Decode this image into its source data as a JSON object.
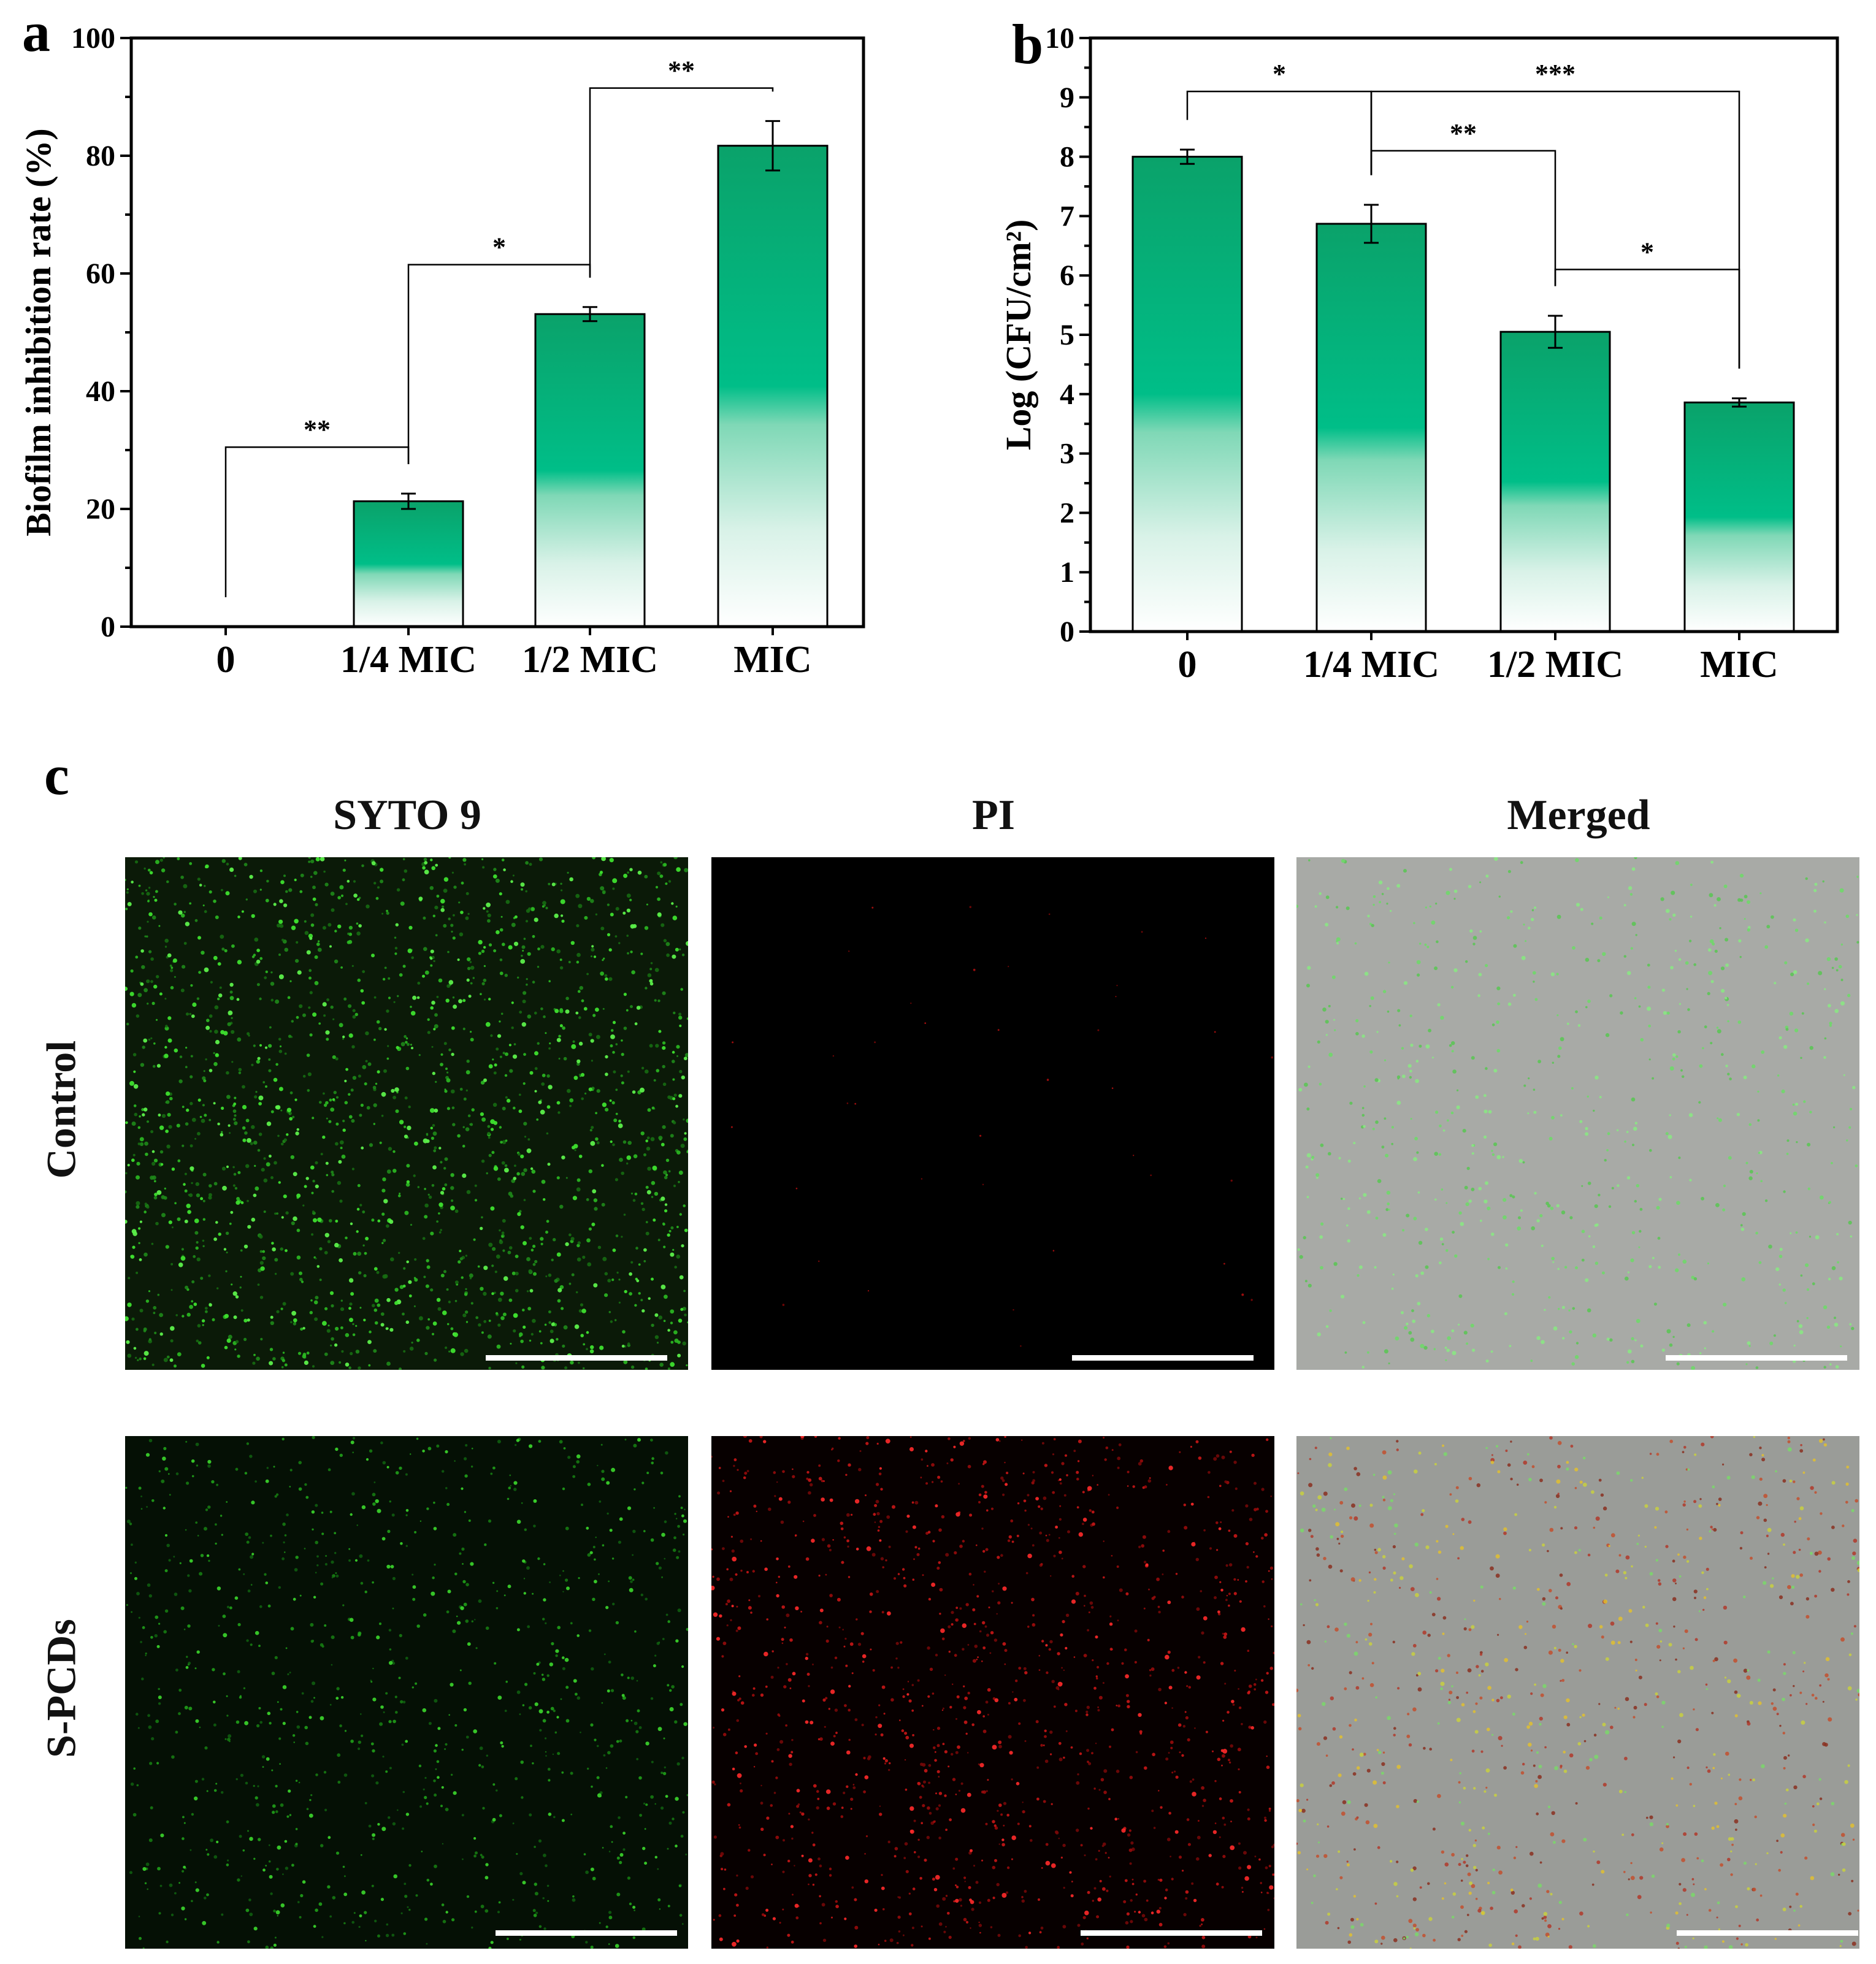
{
  "panels": {
    "a": "a",
    "b": "b",
    "c": "c"
  },
  "chart_data": [
    {
      "type": "bar",
      "panel": "a",
      "categories": [
        "0",
        "1/4 MIC",
        "1/2 MIC",
        "MIC"
      ],
      "values": [
        0,
        21.3,
        53.1,
        81.7
      ],
      "errors": [
        0,
        1.3,
        1.2,
        4.2
      ],
      "ylabel": "Biofilm inhibition rate (%)",
      "ylim": [
        0,
        100
      ],
      "yticks": [
        0,
        20,
        40,
        60,
        80,
        100
      ],
      "significance": [
        {
          "from": 0,
          "to": 1,
          "label": "**",
          "y": 30.5
        },
        {
          "from": 1,
          "to": 2,
          "label": "*",
          "y": 61.5
        },
        {
          "from": 2,
          "to": 3,
          "label": "**",
          "y": 91.5
        }
      ],
      "bar_color": "#00b072"
    },
    {
      "type": "bar",
      "panel": "b",
      "categories": [
        "0",
        "1/4 MIC",
        "1/2 MIC",
        "MIC"
      ],
      "values": [
        8.0,
        6.87,
        5.05,
        3.86
      ],
      "errors": [
        0.12,
        0.32,
        0.27,
        0.07
      ],
      "ylabel": "Log (CFU/cm²)",
      "ylim": [
        0,
        10
      ],
      "yticks": [
        0,
        1,
        2,
        3,
        4,
        5,
        6,
        7,
        8,
        9,
        10
      ],
      "significance": [
        {
          "from": 0,
          "to": 1,
          "label": "*",
          "y": 9.1
        },
        {
          "from": 1,
          "to": 3,
          "label": "***",
          "y": 9.1
        },
        {
          "from": 1,
          "to": 2,
          "label": "**",
          "y": 8.1
        },
        {
          "from": 2,
          "to": 3,
          "label": "*",
          "y": 6.1
        }
      ],
      "bar_color": "#00b072"
    }
  ],
  "microscopy": {
    "columns": [
      "SYTO 9",
      "PI",
      "Merged"
    ],
    "rows": [
      "Control",
      "S-PCDs"
    ]
  }
}
